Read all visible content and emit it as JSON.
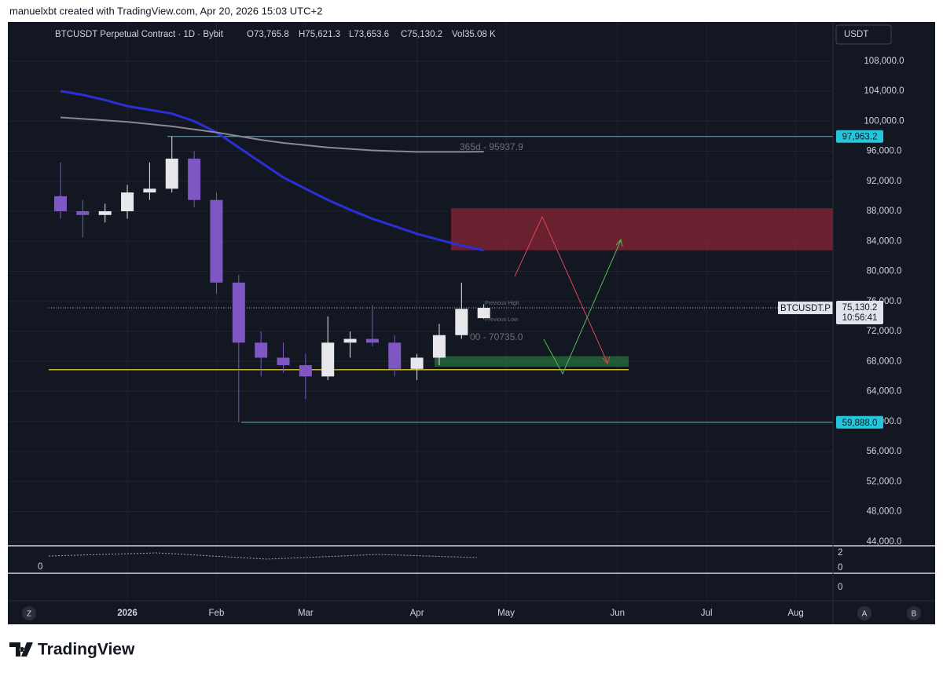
{
  "header": {
    "attribution": "manuelxbt created with TradingView.com, Apr 20, 2026 15:03 UTC+2",
    "symbol": "BTCUSDT Perpetual Contract · 1D · Bybit",
    "open": "O73,765.8",
    "high": "H75,621.3",
    "low": "L73,653.6",
    "close": "C75,130.2",
    "volume": "Vol35.08 K",
    "currency": "USDT"
  },
  "chart_data": {
    "type": "candlestick",
    "categories": [
      null,
      null,
      null,
      "2026",
      null,
      null,
      null,
      "Feb",
      null,
      null,
      null,
      "Mar",
      null,
      null,
      null,
      null,
      "Apr",
      null,
      null,
      null,
      "May",
      null,
      null,
      null,
      null,
      "Jun",
      null,
      null,
      null,
      "Jul",
      null,
      null,
      null,
      "Aug"
    ],
    "open": [
      90000,
      88000,
      87500,
      88000,
      90500,
      91000,
      95000,
      89500,
      78500,
      70500,
      68500,
      67500,
      66000,
      70500,
      71000,
      70500,
      67000,
      68500,
      71500,
      73765.8,
      null,
      null,
      null,
      null,
      null,
      null,
      null,
      null,
      null,
      null,
      null,
      null,
      null,
      null
    ],
    "high": [
      94500,
      89500,
      89000,
      91500,
      94500,
      97963.2,
      96000,
      90500,
      79500,
      72000,
      70500,
      69000,
      74000,
      72000,
      75500,
      71500,
      69000,
      73000,
      78500,
      75621.3,
      null,
      null,
      null,
      null,
      null,
      null,
      null,
      null,
      null,
      null,
      null,
      null,
      null,
      null
    ],
    "low": [
      87000,
      84500,
      86500,
      87000,
      89500,
      90500,
      88500,
      77000,
      59888,
      66000,
      66500,
      63000,
      65500,
      68500,
      70000,
      66000,
      65500,
      67500,
      71000,
      73653.6,
      null,
      null,
      null,
      null,
      null,
      null,
      null,
      null,
      null,
      null,
      null,
      null,
      null,
      null
    ],
    "close": [
      88000,
      87500,
      88000,
      90500,
      91000,
      95000,
      89500,
      78500,
      70500,
      68500,
      67500,
      66000,
      70500,
      71000,
      70500,
      67000,
      68500,
      71500,
      75000,
      75130.2,
      null,
      null,
      null,
      null,
      null,
      null,
      null,
      null,
      null,
      null,
      null,
      null,
      null,
      null
    ],
    "up_color": "#e8e8ec",
    "down_color": "#7e57c2",
    "overlays": [
      {
        "color": "#2a2fd6",
        "values": [
          104000,
          103500,
          102800,
          102000,
          101500,
          101000,
          100000,
          98500,
          96500,
          94500,
          92500,
          91000,
          89500,
          88200,
          87000,
          86000,
          85000,
          84200,
          83400,
          82800,
          null,
          null,
          null,
          null,
          null,
          null,
          null,
          null,
          null,
          null,
          null,
          null,
          null,
          null
        ]
      },
      {
        "color": "#8a8a92",
        "values": [
          100500,
          100300,
          100100,
          99900,
          99600,
          99300,
          98900,
          98500,
          98000,
          97500,
          97100,
          96800,
          96500,
          96300,
          96100,
          96000,
          95900,
          95900,
          95900,
          95937.9,
          null,
          null,
          null,
          null,
          null,
          null,
          null,
          null,
          null,
          null,
          null,
          null,
          null,
          null
        ]
      }
    ],
    "annotations": [
      "365d - 95937.9",
      "Previous High",
      "Previous Low",
      "00 - 70735.0"
    ],
    "ylim": [
      43450,
      113200
    ],
    "yticks": [
      {
        "value": 108000,
        "label": "108,000.0"
      },
      {
        "value": 104000,
        "label": "104,000.0"
      },
      {
        "value": 100000,
        "label": "100,000.0"
      },
      {
        "value": 96000,
        "label": "96,000.0"
      },
      {
        "value": 92000,
        "label": "92,000.0"
      },
      {
        "value": 88000,
        "label": "88,000.0"
      },
      {
        "value": 84000,
        "label": "84,000.0"
      },
      {
        "value": 80000,
        "label": "80,000.0"
      },
      {
        "value": 76000,
        "label": "76,000.0"
      },
      {
        "value": 72000,
        "label": "72,000.0"
      },
      {
        "value": 68000,
        "label": "68,000.0"
      },
      {
        "value": 64000,
        "label": "64,000.0"
      },
      {
        "value": 60000,
        "label": "60,000.0"
      },
      {
        "value": 56000,
        "label": "56,000.0"
      },
      {
        "value": 52000,
        "label": "52,000.0"
      },
      {
        "value": 48000,
        "label": "48,000.0"
      },
      {
        "value": 44000,
        "label": "44,000.0"
      }
    ],
    "levels": [
      {
        "value": 97963.2,
        "label": "97,963.2",
        "color": "#26c6da"
      },
      {
        "value": 59888.0,
        "label": "59,888.0",
        "color": "#26c6da"
      }
    ],
    "support_line": {
      "value": 66900,
      "color": "#c9b037"
    },
    "zones": [
      {
        "from": 82800,
        "to": 88400,
        "color": "#b2283a"
      },
      {
        "from": 67300,
        "to": 68700,
        "color": "#2e9a4a"
      }
    ],
    "last_price": {
      "value": 75130.2,
      "label": "75,130.2",
      "symbol": "BTCUSDT.P",
      "countdown": "10:56:41"
    },
    "grid": true
  },
  "indicator_pane": {
    "right_labels": [
      "2",
      "0",
      "0"
    ],
    "left_label": "0"
  },
  "footer": {
    "left_button": "Z",
    "right_buttons": [
      "A",
      "B"
    ],
    "logo": "TradingView"
  }
}
